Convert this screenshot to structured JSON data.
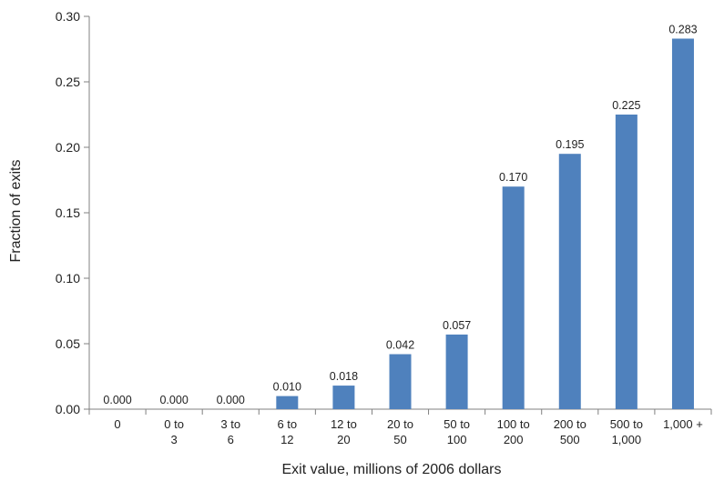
{
  "chart_data": {
    "type": "bar",
    "title": "",
    "xlabel": "Exit value, millions of 2006 dollars",
    "ylabel": "Fraction of exits",
    "categories": [
      [
        "0"
      ],
      [
        "0 to",
        "3"
      ],
      [
        "3 to",
        "6"
      ],
      [
        "6 to",
        "12"
      ],
      [
        "12 to",
        "20"
      ],
      [
        "20 to",
        "50"
      ],
      [
        "50 to",
        "100"
      ],
      [
        "100 to",
        "200"
      ],
      [
        "200 to",
        "500"
      ],
      [
        "500 to",
        "1,000"
      ],
      [
        "1,000 +"
      ]
    ],
    "values": [
      0.0,
      0.0,
      0.0,
      0.01,
      0.018,
      0.042,
      0.057,
      0.17,
      0.195,
      0.225,
      0.283
    ],
    "value_labels": [
      "0.000",
      "0.000",
      "0.000",
      "0.010",
      "0.018",
      "0.042",
      "0.057",
      "0.170",
      "0.195",
      "0.225",
      "0.283"
    ],
    "ylim": [
      0,
      0.3
    ],
    "yticks": [
      "0.00",
      "0.05",
      "0.10",
      "0.15",
      "0.20",
      "0.25",
      "0.30"
    ],
    "ytick_values": [
      0,
      0.05,
      0.1,
      0.15,
      0.2,
      0.25,
      0.3
    ],
    "grid": false,
    "legend": "none",
    "colors": {
      "bar": "#4f81bd",
      "axis": "#808080",
      "text": "#222222"
    }
  }
}
